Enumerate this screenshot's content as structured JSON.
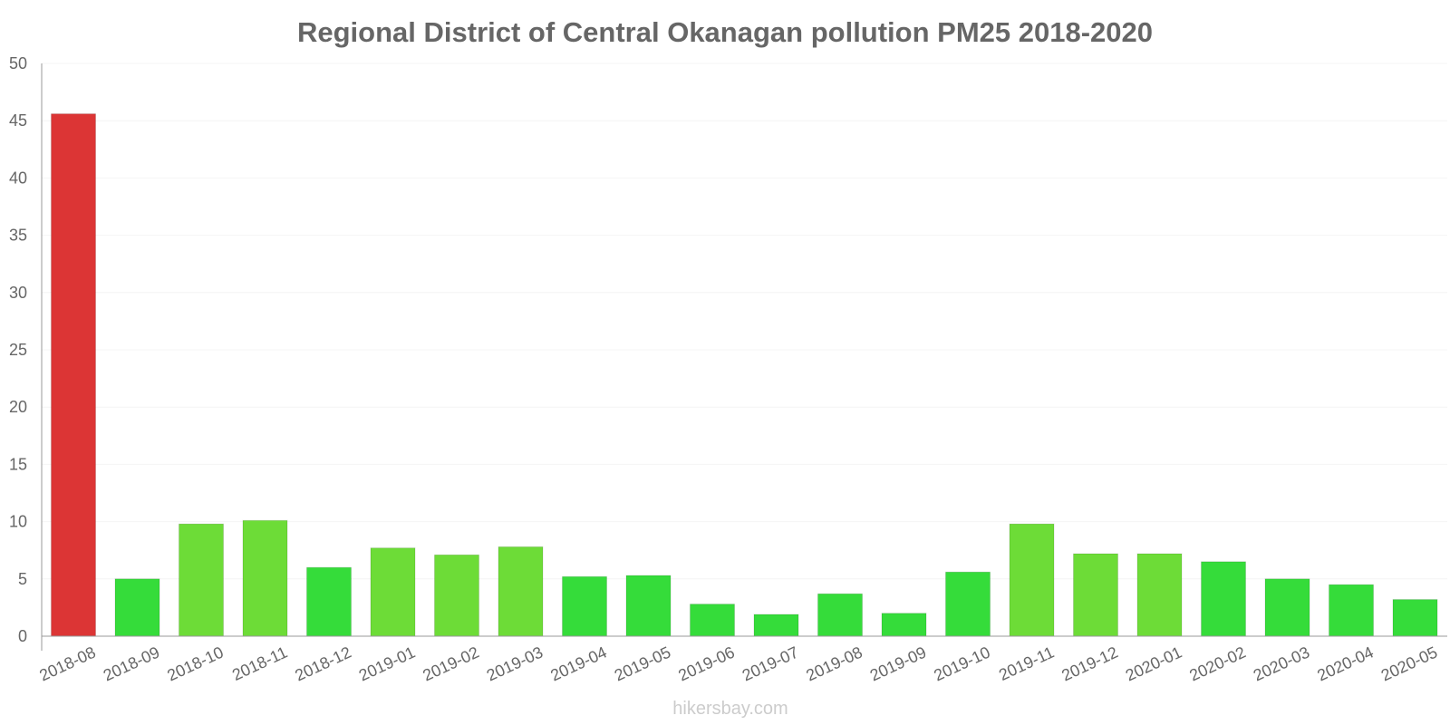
{
  "chart_data": {
    "type": "bar",
    "title": "Regional District of Central Okanagan pollution PM25 2018-2020",
    "xlabel": "",
    "ylabel": "",
    "ylim": [
      0,
      50
    ],
    "yticks": [
      0,
      5,
      10,
      15,
      20,
      25,
      30,
      35,
      40,
      45,
      50
    ],
    "categories": [
      "2018-08",
      "2018-09",
      "2018-10",
      "2018-11",
      "2018-12",
      "2019-01",
      "2019-02",
      "2019-03",
      "2019-04",
      "2019-05",
      "2019-06",
      "2019-07",
      "2019-08",
      "2019-09",
      "2019-10",
      "2019-11",
      "2019-12",
      "2020-01",
      "2020-02",
      "2020-03",
      "2020-04",
      "2020-05"
    ],
    "values": [
      45.6,
      5.0,
      9.8,
      10.1,
      6.0,
      7.7,
      7.1,
      7.8,
      5.2,
      5.3,
      2.8,
      1.9,
      3.7,
      2.0,
      5.6,
      9.8,
      7.2,
      7.2,
      6.5,
      5.0,
      4.5,
      3.2
    ],
    "colors": {
      "red": "#dc3535",
      "light_green": "#6ddc37",
      "green": "#35dc3a",
      "grid": "#f4f4f4",
      "axis": "#999999"
    },
    "bar_color_classes": [
      "red",
      "green",
      "light_green",
      "light_green",
      "green",
      "light_green",
      "light_green",
      "light_green",
      "green",
      "green",
      "green",
      "green",
      "green",
      "green",
      "green",
      "light_green",
      "light_green",
      "light_green",
      "green",
      "green",
      "green",
      "green"
    ]
  },
  "watermark": "hikersbay.com"
}
